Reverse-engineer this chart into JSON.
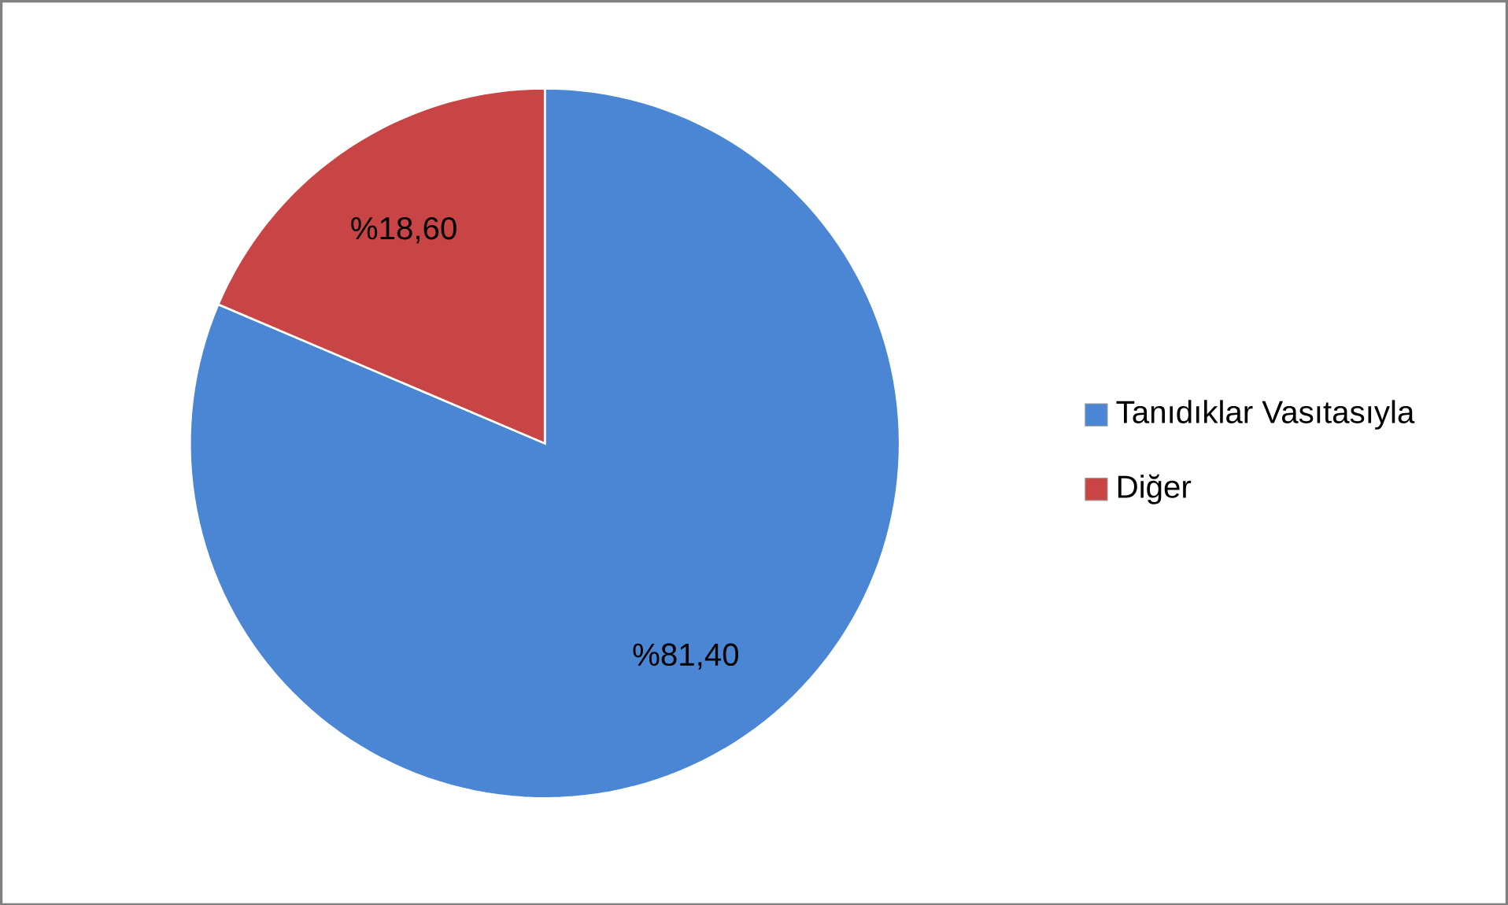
{
  "chart_data": {
    "type": "pie",
    "categories": [
      "Tanıdıklar Vasıtasıyla",
      "Diğer"
    ],
    "values": [
      81.4,
      18.6
    ],
    "colors": [
      "#4a86d4",
      "#c94444"
    ],
    "value_labels": [
      "%81,40",
      "%18,60"
    ],
    "legend": "right"
  }
}
